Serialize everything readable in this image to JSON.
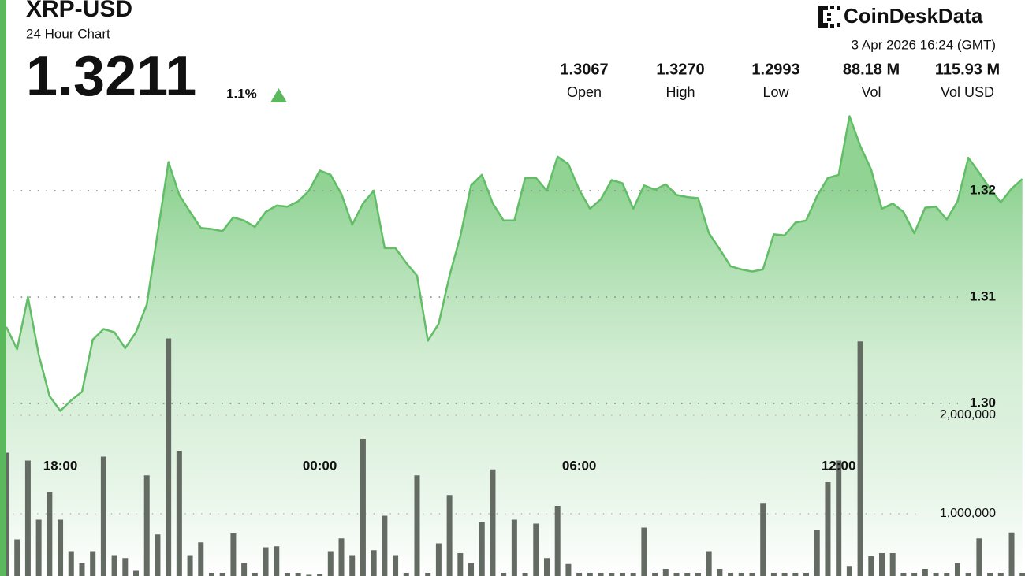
{
  "header": {
    "symbol": "XRP-USD",
    "subtitle": "24 Hour Chart",
    "price": "1.3211",
    "change": "1.1%",
    "logo": "CoinDeskData",
    "timestamp": "3 Apr 2026 16:24 (GMT)"
  },
  "stats": [
    {
      "value": "1.3067",
      "label": "Open"
    },
    {
      "value": "1.3270",
      "label": "High"
    },
    {
      "value": "1.2993",
      "label": "Low"
    },
    {
      "value": "88.18 M",
      "label": "Vol"
    },
    {
      "value": "115.93 M",
      "label": "Vol USD"
    }
  ],
  "chart_data": {
    "type": "line",
    "categories": [
      null,
      null,
      null,
      null,
      null,
      "18:00",
      null,
      null,
      null,
      null,
      null,
      null,
      null,
      null,
      null,
      null,
      null,
      null,
      null,
      null,
      null,
      null,
      null,
      null,
      null,
      null,
      null,
      null,
      null,
      "00:00",
      null,
      null,
      null,
      null,
      null,
      null,
      null,
      null,
      null,
      null,
      null,
      null,
      null,
      null,
      null,
      null,
      null,
      null,
      null,
      null,
      null,
      null,
      null,
      "06:00",
      null,
      null,
      null,
      null,
      null,
      null,
      null,
      null,
      null,
      null,
      null,
      null,
      null,
      null,
      null,
      null,
      null,
      null,
      null,
      null,
      null,
      null,
      null,
      "12:00",
      null,
      null,
      null,
      null,
      null,
      null,
      null,
      null,
      null,
      null,
      null,
      null,
      null,
      null,
      null,
      null,
      null
    ],
    "series": [
      {
        "type": "line",
        "color": "#62bd67",
        "values": [
          1.3072,
          1.3051,
          1.31,
          1.3046,
          1.3007,
          1.2993,
          1.3003,
          1.3011,
          1.306,
          1.307,
          1.3067,
          1.3052,
          1.3067,
          1.3093,
          1.316,
          1.3227,
          1.3196,
          1.318,
          1.3165,
          1.3164,
          1.3162,
          1.3175,
          1.3172,
          1.3166,
          1.318,
          1.3186,
          1.3185,
          1.319,
          1.32,
          1.3219,
          1.3215,
          1.3197,
          1.3168,
          1.3188,
          1.32,
          1.3146,
          1.3146,
          1.3132,
          1.312,
          1.3059,
          1.3075,
          1.312,
          1.3157,
          1.3205,
          1.3215,
          1.3188,
          1.3172,
          1.3172,
          1.3212,
          1.3212,
          1.32,
          1.3232,
          1.3225,
          1.3201,
          1.3183,
          1.3192,
          1.321,
          1.3207,
          1.3183,
          1.3205,
          1.3201,
          1.3206,
          1.3196,
          1.3194,
          1.3193,
          1.316,
          1.3145,
          1.3129,
          1.3126,
          1.3124,
          1.3126,
          1.3159,
          1.3158,
          1.317,
          1.3172,
          1.3195,
          1.3212,
          1.3215,
          1.327,
          1.3242,
          1.322,
          1.3183,
          1.3188,
          1.318,
          1.316,
          1.3184,
          1.3185,
          1.3173,
          1.319,
          1.3231,
          1.3217,
          1.3202,
          1.3189,
          1.3202,
          1.3211
        ]
      },
      {
        "type": "bar",
        "axis": "y2",
        "color": "#636b63",
        "values": [
          1620000,
          740000,
          1540000,
          940000,
          1220000,
          940000,
          620000,
          500000,
          620000,
          1580000,
          580000,
          550000,
          420000,
          1390000,
          790000,
          2780000,
          1640000,
          580000,
          710000,
          400000,
          400000,
          800000,
          500000,
          400000,
          660000,
          670000,
          400000,
          400000,
          380000,
          390000,
          620000,
          750000,
          580000,
          1760000,
          630000,
          980000,
          580000,
          400000,
          1390000,
          400000,
          700000,
          1190000,
          600000,
          500000,
          920000,
          1450000,
          400000,
          940000,
          400000,
          900000,
          550000,
          1080000,
          490000,
          400000,
          400000,
          400000,
          400000,
          400000,
          400000,
          860000,
          400000,
          440000,
          400000,
          400000,
          400000,
          620000,
          440000,
          400000,
          400000,
          400000,
          1110000,
          400000,
          400000,
          400000,
          400000,
          840000,
          1320000,
          1540000,
          470000,
          2750000,
          570000,
          600000,
          600000,
          400000,
          400000,
          440000,
          400000,
          400000,
          500000,
          400000,
          750000,
          400000,
          400000,
          810000,
          400000
        ]
      }
    ],
    "ylim": [
      1.28378,
      1.33793
    ],
    "yticks": [
      {
        "value": 1.3,
        "label": "1.30"
      },
      1.31,
      1.32
    ],
    "y2lim": [
      368000,
      6216000
    ],
    "y2ticks": [
      {
        "value": 1000000,
        "label": "1,000,000"
      },
      {
        "value": 2000000,
        "label": "2,000,000"
      }
    ],
    "grid": true
  }
}
